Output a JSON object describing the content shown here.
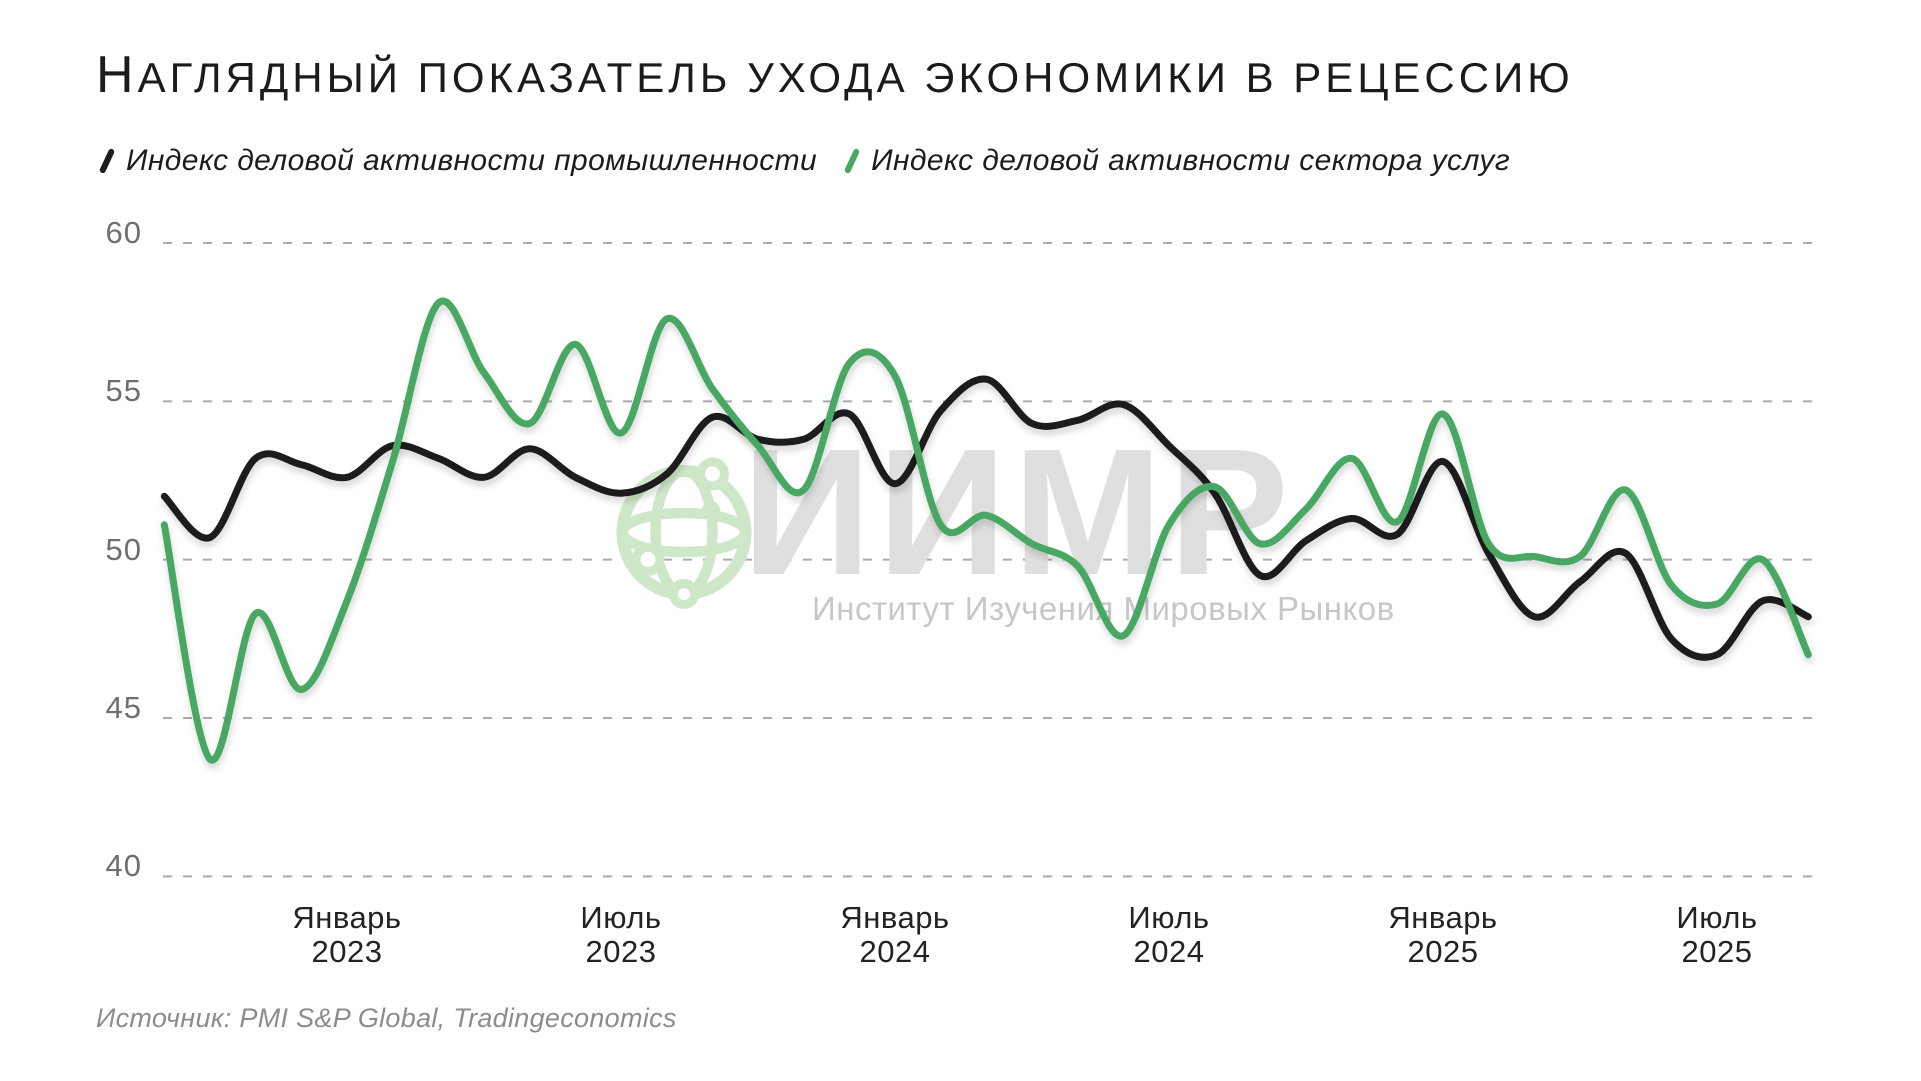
{
  "title": "Наглядный показатель ухода экономики в рецессию",
  "legend": [
    {
      "label": "Индекс деловой активности промышленности",
      "color": "#1c1c1c"
    },
    {
      "label": "Индекс деловой активности сектора услуг",
      "color": "#47a763"
    }
  ],
  "watermark": {
    "acronym": "ИИМР",
    "subtitle": "Институт Изучения Мировых Рынков",
    "globe_icon": "globe-network-icon",
    "accent_color": "#cde7c8",
    "text_color": "#dfdfdf"
  },
  "source": "Источник: PMI S&P Global, Tradingeconomics",
  "chart_data": {
    "type": "line",
    "title": "Наглядный показатель ухода экономики в рецессию",
    "x": [
      "2022-09",
      "2022-10",
      "2022-11",
      "2022-12",
      "2023-01",
      "2023-02",
      "2023-03",
      "2023-04",
      "2023-05",
      "2023-06",
      "2023-07",
      "2023-08",
      "2023-09",
      "2023-10",
      "2023-11",
      "2023-12",
      "2024-01",
      "2024-02",
      "2024-03",
      "2024-04",
      "2024-05",
      "2024-06",
      "2024-07",
      "2024-08",
      "2024-09",
      "2024-10",
      "2024-11",
      "2024-12",
      "2025-01",
      "2025-02",
      "2025-03",
      "2025-04",
      "2025-05",
      "2025-06",
      "2025-07",
      "2025-08",
      "2025-09"
    ],
    "series": [
      {
        "name": "Индекс деловой активности промышленности",
        "color": "#1c1c1c",
        "values": [
          52.0,
          50.7,
          53.2,
          53.0,
          52.6,
          53.6,
          53.2,
          52.6,
          53.5,
          52.6,
          52.1,
          52.7,
          54.5,
          53.8,
          53.8,
          54.6,
          52.4,
          54.7,
          55.7,
          54.3,
          54.4,
          54.9,
          53.6,
          52.1,
          49.5,
          50.6,
          51.3,
          50.8,
          53.1,
          50.2,
          48.2,
          49.3,
          50.2,
          47.5,
          47.0,
          48.7,
          48.2
        ]
      },
      {
        "name": "Индекс деловой активности сектора услуг",
        "color": "#47a763",
        "values": [
          51.1,
          43.7,
          48.3,
          45.9,
          48.7,
          53.1,
          58.1,
          55.9,
          54.3,
          56.8,
          54.0,
          57.6,
          55.4,
          53.6,
          52.2,
          56.2,
          55.8,
          51.1,
          51.4,
          50.5,
          49.8,
          47.6,
          51.1,
          52.3,
          50.5,
          51.6,
          53.2,
          51.2,
          54.6,
          50.5,
          50.1,
          50.1,
          52.2,
          49.2,
          48.6,
          50.0,
          47.0
        ]
      }
    ],
    "yticks": [
      60,
      55,
      50,
      45,
      40
    ],
    "ylim": [
      40,
      60
    ],
    "xticks": [
      {
        "line1": "Январь",
        "line2": "2023",
        "month_index": 4
      },
      {
        "line1": "Июль",
        "line2": "2023",
        "month_index": 10
      },
      {
        "line1": "Январь",
        "line2": "2024",
        "month_index": 16
      },
      {
        "line1": "Июль",
        "line2": "2024",
        "month_index": 22
      },
      {
        "line1": "Январь",
        "line2": "2025",
        "month_index": 28
      },
      {
        "line1": "Июль",
        "line2": "2025",
        "month_index": 34
      }
    ],
    "grid": "horizontal-dashed",
    "gridline_color": "#ababab",
    "legend_position": "top-left"
  }
}
